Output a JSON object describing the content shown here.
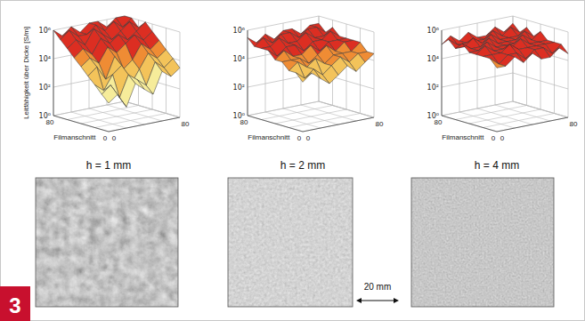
{
  "chart_data": [
    {
      "type": "surface",
      "title": "h = 1 mm",
      "x_label": "Filmanschnitt",
      "z_label": "Leitfähigkeit über Dicke [S/m]",
      "log": true,
      "x": [
        0,
        10,
        20,
        30,
        40,
        50,
        60,
        70,
        80
      ],
      "y": [
        0,
        10,
        20,
        30,
        40,
        50,
        60,
        70,
        80
      ],
      "xlim": [
        0,
        80
      ],
      "xticks": [
        0,
        80
      ],
      "ylim": [
        0,
        80
      ],
      "yticks": [
        0,
        80
      ],
      "zlim": [
        1,
        1000000
      ],
      "zticks": [
        {
          "value": 1,
          "label": "10⁰"
        },
        {
          "value": 100,
          "label": "10²"
        },
        {
          "value": 10000,
          "label": "10⁴"
        },
        {
          "value": 1000000,
          "label": "10⁶"
        }
      ],
      "colorscale": {
        "ticks": [
          1000,
          10000,
          50000
        ],
        "colors": [
          "#f6ec9a",
          "#f3c35a",
          "#ef8c34",
          "#dc2e22"
        ]
      },
      "values": [
        [
          100,
          300,
          30,
          1000,
          300,
          100,
          3000,
          1000,
          3000
        ],
        [
          300,
          1000,
          100,
          3000,
          1000,
          300,
          10000,
          3000,
          10000
        ],
        [
          1000,
          300,
          3000,
          10000,
          300,
          3000,
          30000,
          10000,
          30000
        ],
        [
          3000,
          10000,
          1000,
          30000,
          3000,
          10000,
          100000,
          30000,
          100000
        ],
        [
          10000,
          30000,
          10000,
          100000,
          30000,
          100000,
          300000,
          100000,
          300000
        ],
        [
          30000,
          100000,
          30000,
          300000,
          100000,
          300000,
          100000,
          300000,
          1000000
        ],
        [
          100000,
          300000,
          100000,
          1000000,
          300000,
          100000,
          300000,
          1000000,
          300000
        ],
        [
          300000,
          1000000,
          300000,
          300000,
          1000000,
          300000,
          1000000,
          300000,
          1000000
        ],
        [
          1000000,
          300000,
          1000000,
          300000,
          1000000,
          1000000,
          300000,
          1000000,
          1000000
        ]
      ]
    },
    {
      "type": "surface",
      "title": "h = 2 mm",
      "x_label": "Filmanschnitt",
      "log": true,
      "x": [
        0,
        10,
        20,
        30,
        40,
        50,
        60,
        70,
        80
      ],
      "y": [
        0,
        10,
        20,
        30,
        40,
        50,
        60,
        70,
        80
      ],
      "xlim": [
        0,
        80
      ],
      "xticks": [
        0,
        80
      ],
      "ylim": [
        0,
        80
      ],
      "yticks": [
        0,
        80
      ],
      "zlim": [
        1,
        1000000
      ],
      "zticks": [
        {
          "value": 1,
          "label": "10⁰"
        },
        {
          "value": 100,
          "label": "10²"
        },
        {
          "value": 10000,
          "label": "10⁴"
        },
        {
          "value": 1000000,
          "label": "10⁶"
        }
      ],
      "colorscale": {
        "ticks": [
          1000,
          10000,
          50000
        ],
        "colors": [
          "#f6ec9a",
          "#f3c35a",
          "#ef8c34",
          "#dc2e22"
        ]
      },
      "values": [
        [
          3000,
          10000,
          3000,
          1000,
          3000,
          10000,
          3000,
          10000,
          30000
        ],
        [
          10000,
          3000,
          10000,
          3000,
          10000,
          30000,
          10000,
          30000,
          30000
        ],
        [
          10000,
          30000,
          10000,
          30000,
          10000,
          30000,
          30000,
          30000,
          100000
        ],
        [
          30000,
          30000,
          30000,
          10000,
          30000,
          100000,
          30000,
          100000,
          100000
        ],
        [
          30000,
          100000,
          30000,
          30000,
          100000,
          30000,
          100000,
          100000,
          100000
        ],
        [
          100000,
          30000,
          100000,
          100000,
          30000,
          100000,
          100000,
          300000,
          100000
        ],
        [
          100000,
          100000,
          300000,
          100000,
          100000,
          300000,
          100000,
          100000,
          300000
        ],
        [
          100000,
          300000,
          100000,
          300000,
          300000,
          100000,
          300000,
          300000,
          100000
        ],
        [
          300000,
          100000,
          300000,
          100000,
          300000,
          300000,
          100000,
          300000,
          300000
        ]
      ]
    },
    {
      "type": "surface",
      "title": "h = 4 mm",
      "x_label": "Filmanschnitt",
      "log": true,
      "x": [
        0,
        10,
        20,
        30,
        40,
        50,
        60,
        70,
        80
      ],
      "y": [
        0,
        10,
        20,
        30,
        40,
        50,
        60,
        70,
        80
      ],
      "xlim": [
        0,
        80
      ],
      "xticks": [
        0,
        80
      ],
      "ylim": [
        0,
        80
      ],
      "yticks": [
        0,
        80
      ],
      "zlim": [
        1,
        1000000
      ],
      "zticks": [
        {
          "value": 1,
          "label": "10⁰"
        },
        {
          "value": 100,
          "label": "10²"
        },
        {
          "value": 10000,
          "label": "10⁴"
        },
        {
          "value": 1000000,
          "label": "10⁶"
        }
      ],
      "colorscale": {
        "ticks": [
          1000,
          10000,
          50000
        ],
        "colors": [
          "#f6ec9a",
          "#f3c35a",
          "#ef8c34",
          "#dc2e22"
        ]
      },
      "values": [
        [
          30000,
          30000,
          100000,
          30000,
          100000,
          30000,
          30000,
          100000,
          30000
        ],
        [
          100000,
          30000,
          100000,
          100000,
          30000,
          100000,
          100000,
          30000,
          100000
        ],
        [
          100000,
          100000,
          100000,
          300000,
          100000,
          100000,
          100000,
          100000,
          100000
        ],
        [
          100000,
          300000,
          100000,
          100000,
          100000,
          300000,
          100000,
          100000,
          100000
        ],
        [
          100000,
          100000,
          300000,
          100000,
          100000,
          100000,
          300000,
          100000,
          300000
        ],
        [
          300000,
          100000,
          100000,
          300000,
          100000,
          100000,
          100000,
          300000,
          100000
        ],
        [
          100000,
          100000,
          300000,
          100000,
          300000,
          100000,
          100000,
          100000,
          300000
        ],
        [
          300000,
          100000,
          100000,
          100000,
          100000,
          300000,
          100000,
          300000,
          100000
        ],
        [
          100000,
          300000,
          100000,
          300000,
          100000,
          100000,
          300000,
          100000,
          300000
        ]
      ]
    }
  ],
  "figure_label": "3",
  "scale_bar": "20 mm"
}
